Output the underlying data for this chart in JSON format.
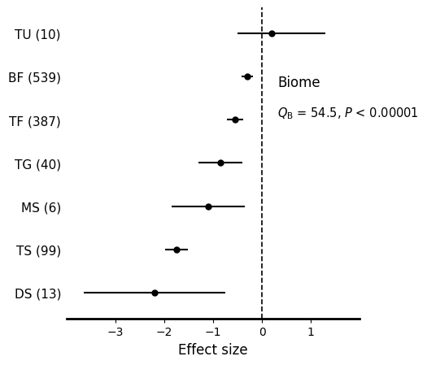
{
  "categories": [
    "TU (10)",
    "BF (539)",
    "TF (387)",
    "TG (40)",
    "MS (6)",
    "TS (99)",
    "DS (13)"
  ],
  "means": [
    0.2,
    -0.3,
    -0.55,
    -0.85,
    -1.1,
    -1.75,
    -2.2
  ],
  "ci_low": [
    -0.5,
    -0.42,
    -0.72,
    -1.3,
    -1.85,
    -1.98,
    -3.65
  ],
  "ci_high": [
    1.3,
    -0.18,
    -0.38,
    -0.4,
    -0.35,
    -1.52,
    -0.75
  ],
  "xlabel": "Effect size",
  "xlim": [
    -4.0,
    2.0
  ],
  "xticks": [
    -3,
    -2,
    -1,
    0,
    1
  ],
  "annotation_title": "Biome",
  "annotation_line2": "$Q_{\\mathrm{B}}$ = 54.5, $P$ < 0.00001",
  "vline_x": 0,
  "background_color": "#ffffff",
  "point_color": "#000000",
  "line_color": "#000000",
  "label_fontsize": 11,
  "xlabel_fontsize": 12,
  "annotation_fontsize_title": 12,
  "annotation_fontsize_line2": 10.5
}
